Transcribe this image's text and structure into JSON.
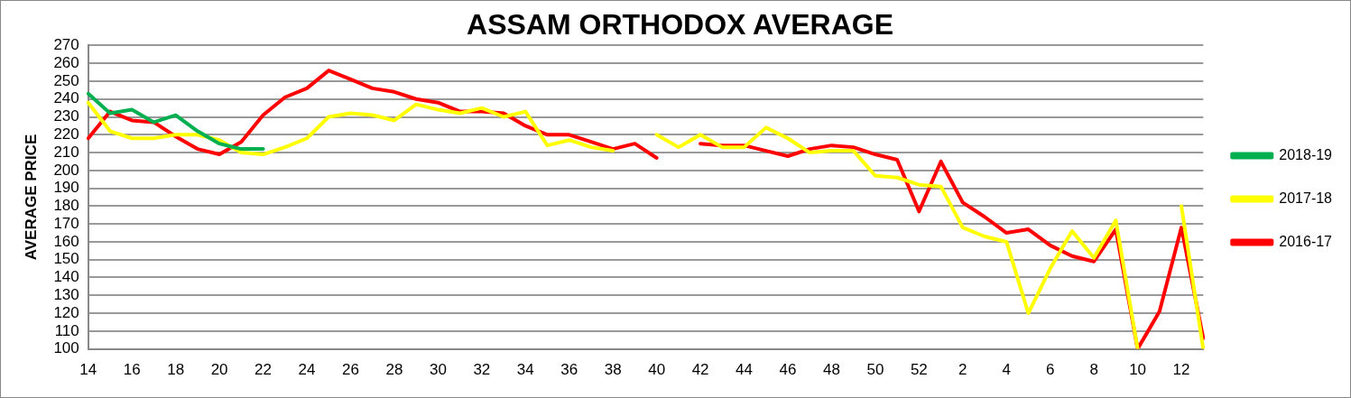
{
  "chart_data": {
    "type": "line",
    "title": "ASSAM ORTHODOX AVERAGE",
    "ylabel": "AVERAGE PRICE",
    "categories": [
      "14",
      null,
      "16",
      null,
      "18",
      null,
      "20",
      null,
      "22",
      null,
      "24",
      null,
      "26",
      null,
      "28",
      null,
      "30",
      null,
      "32",
      null,
      "34",
      null,
      "36",
      null,
      "38",
      null,
      "40",
      null,
      "42",
      null,
      "44",
      null,
      "46",
      null,
      "48",
      null,
      "50",
      null,
      "52",
      null,
      "2",
      null,
      "4",
      null,
      "6",
      null,
      "8",
      null,
      "10",
      null,
      "12",
      null
    ],
    "series": [
      {
        "name": "2018-19",
        "color": "#00b050",
        "values": [
          243,
          232,
          234,
          227,
          231,
          222,
          215,
          212,
          212,
          null,
          null,
          null,
          null,
          null,
          null,
          null,
          null,
          null,
          null,
          null,
          null,
          null,
          null,
          null,
          null,
          null,
          null,
          null,
          null,
          null,
          null,
          null,
          null,
          null,
          null,
          null,
          null,
          null,
          null,
          null,
          null,
          null,
          null,
          null,
          null,
          null,
          null,
          null,
          null,
          null,
          null,
          null
        ]
      },
      {
        "name": "2017-18",
        "color": "#ffff00",
        "values": [
          238,
          222,
          218,
          218,
          220,
          220,
          217,
          210,
          209,
          213,
          218,
          230,
          232,
          231,
          228,
          237,
          234,
          232,
          235,
          230,
          233,
          214,
          217,
          213,
          211,
          null,
          220,
          213,
          220,
          213,
          213,
          224,
          218,
          210,
          211,
          211,
          197,
          196,
          192,
          191,
          168,
          163,
          160,
          120,
          145,
          166,
          151,
          172,
          100,
          null,
          180,
          100
        ]
      },
      {
        "name": "2016-17",
        "color": "#ff0000",
        "values": [
          218,
          233,
          228,
          227,
          219,
          212,
          209,
          216,
          231,
          241,
          246,
          256,
          251,
          246,
          244,
          240,
          238,
          233,
          233,
          232,
          225,
          220,
          220,
          216,
          212,
          215,
          207,
          null,
          215,
          214,
          214,
          211,
          208,
          212,
          214,
          213,
          209,
          206,
          177,
          205,
          182,
          174,
          165,
          167,
          158,
          152,
          149,
          167,
          100,
          121,
          168,
          106
        ]
      }
    ],
    "ylim": [
      100,
      270
    ],
    "yticks": [
      100,
      110,
      120,
      130,
      140,
      150,
      160,
      170,
      180,
      190,
      200,
      210,
      220,
      230,
      240,
      250,
      260,
      270
    ],
    "grid": "y",
    "legend": "right",
    "marker": "none",
    "line_style": "solid"
  }
}
